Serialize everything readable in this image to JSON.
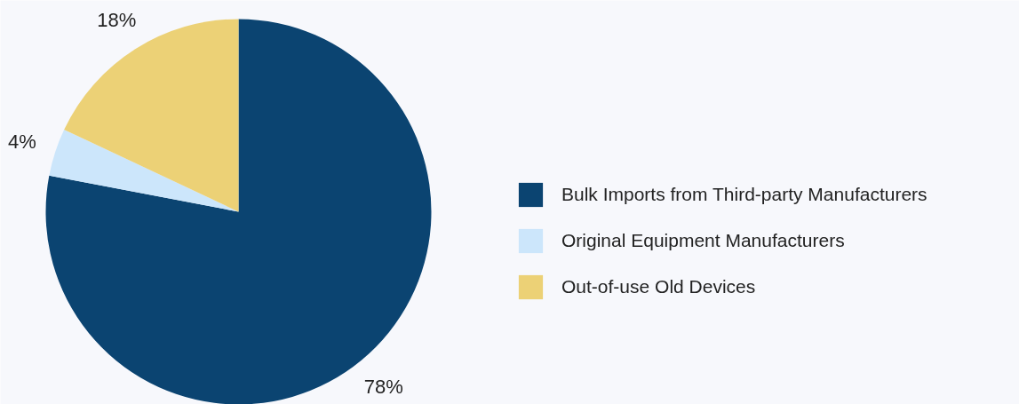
{
  "chart_data": {
    "type": "pie",
    "categories": [
      "Bulk Imports from Third-party Manufacturers",
      "Original Equipment Manufacturers",
      "Out-of-use Old Devices"
    ],
    "values": [
      78,
      4,
      18
    ],
    "colors": [
      "#0b4471",
      "#cce6fb",
      "#ecd176"
    ],
    "value_labels": [
      "78%",
      "4%",
      "18%"
    ],
    "legend": "right"
  }
}
